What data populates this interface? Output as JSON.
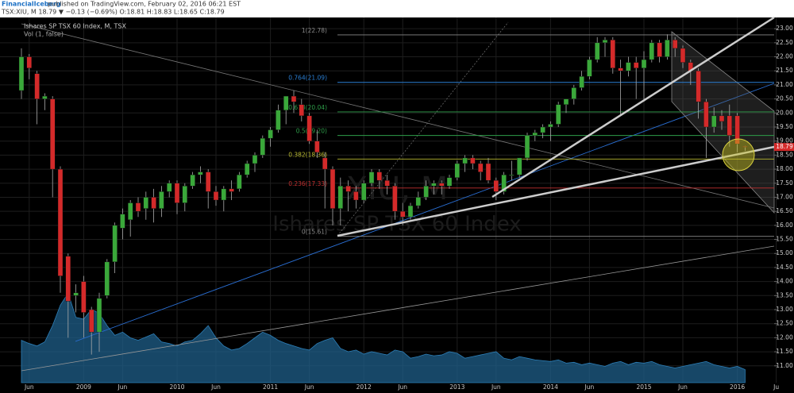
{
  "header": {
    "author": "FinancialIceberg",
    "published": "published on TradingView.com, February 02, 2016 06:21 EST",
    "symbol_line": "TSX:XIU, M 18.79 ▼ −0.13 (−0.69%) O:18.81 H:18.83 L:18.65 C:18.79"
  },
  "chart_data": {
    "type": "candlestick",
    "title": "Ishares SP TSX 60 Index, M, TSX",
    "volume_title": "Vol (1, false)",
    "watermark": [
      "XIU, M",
      "Ishares SP TSX 60 Index"
    ],
    "up_color": "#3aa83a",
    "down_color": "#d42a2a",
    "volume_color": "#1f5f8a",
    "grid": true,
    "categories": [
      null,
      "Jun",
      null,
      null,
      null,
      null,
      null,
      null,
      "2009",
      null,
      null,
      null,
      null,
      "Jun",
      null,
      null,
      null,
      null,
      null,
      null,
      "2010",
      null,
      null,
      null,
      null,
      "Jun",
      null,
      null,
      null,
      null,
      null,
      null,
      "2011",
      null,
      null,
      null,
      null,
      "Jun",
      null,
      null,
      null,
      null,
      null,
      null,
      "2012",
      null,
      null,
      null,
      null,
      "Jun",
      null,
      null,
      null,
      null,
      null,
      null,
      "2013",
      null,
      null,
      null,
      null,
      "Jun",
      null,
      null,
      null,
      null,
      null,
      null,
      "2014",
      null,
      null,
      null,
      null,
      "Jun",
      null,
      null,
      null,
      null,
      null,
      null,
      "2015",
      null,
      null,
      null,
      null,
      "Jun",
      null,
      null,
      null,
      null,
      null,
      null,
      "2016",
      null,
      null,
      null,
      null,
      "Ju"
    ],
    "open": [
      20.8,
      22.0,
      21.4,
      20.5,
      20.5,
      18.0,
      14.9,
      13.5,
      14.0,
      13.0,
      12.2,
      13.5,
      14.7,
      15.9,
      16.2,
      16.8,
      16.6,
      17.0,
      16.6,
      17.2,
      17.5,
      16.8,
      17.4,
      17.8,
      17.9,
      17.2,
      16.9,
      17.3,
      17.3,
      17.8,
      18.2,
      18.5,
      19.1,
      19.4,
      20.1,
      20.6,
      20.3,
      19.9,
      19.0,
      18.4,
      18.0,
      16.6,
      17.4,
      17.2,
      16.9,
      17.5,
      17.9,
      17.6,
      17.4,
      16.5,
      16.3,
      16.7,
      17.0,
      17.4,
      17.5,
      17.4,
      17.7,
      18.2,
      18.4,
      18.2,
      18.2,
      17.6,
      17.2,
      17.8,
      17.8,
      18.4,
      19.2,
      19.3,
      19.5,
      19.6,
      20.3,
      20.5,
      20.9,
      21.3,
      21.9,
      22.5,
      22.6,
      21.6,
      21.5,
      21.8,
      21.6,
      21.9,
      22.5,
      22.0,
      22.6,
      22.3,
      21.8,
      21.5,
      20.4,
      19.5,
      19.9,
      19.9,
      19.9,
      18.81,
      null,
      null,
      null,
      null
    ],
    "high": [
      22.3,
      22.1,
      21.5,
      20.7,
      20.6,
      18.1,
      15.0,
      13.9,
      14.2,
      13.1,
      13.6,
      14.8,
      16.1,
      16.6,
      16.9,
      17.0,
      17.2,
      17.3,
      17.4,
      17.6,
      17.6,
      17.5,
      17.9,
      18.1,
      18.0,
      17.4,
      17.4,
      17.6,
      17.9,
      18.3,
      18.6,
      19.2,
      19.5,
      20.3,
      20.6,
      20.8,
      20.5,
      20.0,
      19.4,
      18.6,
      18.1,
      17.7,
      17.6,
      17.4,
      17.6,
      18.0,
      18.0,
      17.8,
      17.5,
      16.8,
      16.8,
      17.2,
      17.6,
      17.6,
      17.6,
      17.8,
      18.3,
      18.5,
      18.5,
      18.3,
      18.4,
      17.7,
      17.9,
      18.3,
      18.4,
      19.3,
      19.4,
      19.6,
      19.7,
      20.4,
      20.5,
      21.0,
      21.5,
      22.0,
      22.7,
      22.7,
      22.7,
      21.9,
      22.0,
      22.0,
      22.2,
      22.6,
      22.6,
      22.8,
      22.7,
      22.4,
      21.9,
      21.6,
      20.5,
      20.2,
      20.1,
      20.3,
      20.0,
      18.83,
      null,
      null,
      null,
      null
    ],
    "low": [
      20.5,
      21.2,
      19.6,
      20.1,
      17.0,
      13.6,
      12.0,
      12.9,
      12.0,
      11.4,
      11.5,
      13.4,
      14.3,
      15.5,
      15.6,
      16.3,
      16.2,
      16.1,
      16.3,
      17.0,
      16.4,
      16.5,
      17.3,
      17.5,
      16.6,
      16.7,
      16.5,
      16.9,
      17.2,
      17.7,
      17.9,
      18.4,
      18.8,
      19.3,
      19.6,
      20.0,
      19.7,
      18.9,
      18.4,
      16.6,
      16.0,
      16.0,
      16.5,
      16.6,
      16.8,
      17.4,
      17.3,
      17.1,
      16.2,
      16.0,
      16.2,
      16.6,
      16.9,
      17.1,
      17.1,
      17.3,
      17.6,
      17.9,
      18.0,
      17.6,
      17.5,
      16.9,
      17.1,
      17.6,
      17.7,
      18.3,
      19.0,
      19.1,
      19.0,
      19.5,
      20.0,
      20.3,
      20.8,
      21.2,
      21.8,
      22.0,
      21.4,
      19.9,
      21.3,
      20.5,
      20.4,
      21.8,
      21.8,
      21.9,
      22.0,
      21.6,
      21.0,
      19.8,
      18.4,
      19.3,
      19.4,
      18.8,
      18.6,
      18.65,
      null,
      null,
      null,
      null
    ],
    "close": [
      22.0,
      21.6,
      20.5,
      20.6,
      18.0,
      14.2,
      13.3,
      13.6,
      12.9,
      12.2,
      13.4,
      14.7,
      16.0,
      16.4,
      16.8,
      16.5,
      17.0,
      16.6,
      17.2,
      17.5,
      16.8,
      17.4,
      17.8,
      17.9,
      17.2,
      16.9,
      17.3,
      17.2,
      17.8,
      18.2,
      18.5,
      19.1,
      19.4,
      20.1,
      20.6,
      20.4,
      19.9,
      19.0,
      18.6,
      18.0,
      16.6,
      17.4,
      17.2,
      16.9,
      17.5,
      17.9,
      17.6,
      17.4,
      16.5,
      16.3,
      16.7,
      17.0,
      17.4,
      17.5,
      17.4,
      17.7,
      18.2,
      18.4,
      18.2,
      17.9,
      17.6,
      17.2,
      17.8,
      17.8,
      18.4,
      19.2,
      19.3,
      19.5,
      19.6,
      20.3,
      20.5,
      20.9,
      21.3,
      21.9,
      22.5,
      22.6,
      21.6,
      21.5,
      21.8,
      21.6,
      21.9,
      22.5,
      22.0,
      22.6,
      22.3,
      21.8,
      21.5,
      20.4,
      19.5,
      19.9,
      19.7,
      19.2,
      18.9,
      18.79,
      null,
      null,
      null,
      null
    ],
    "volume": [
      52,
      48,
      45,
      50,
      70,
      95,
      110,
      80,
      78,
      90,
      85,
      70,
      58,
      62,
      55,
      52,
      56,
      60,
      50,
      48,
      45,
      50,
      52,
      60,
      70,
      55,
      45,
      40,
      42,
      48,
      55,
      62,
      58,
      52,
      48,
      45,
      42,
      40,
      48,
      52,
      55,
      42,
      38,
      40,
      35,
      38,
      36,
      34,
      40,
      38,
      30,
      32,
      35,
      33,
      34,
      38,
      36,
      30,
      32,
      34,
      36,
      38,
      30,
      28,
      32,
      30,
      28,
      27,
      26,
      28,
      24,
      25,
      22,
      24,
      22,
      20,
      24,
      26,
      22,
      25,
      24,
      26,
      22,
      20,
      18,
      20,
      22,
      24,
      26,
      22,
      20,
      18,
      20,
      16,
      null,
      null,
      null,
      null
    ],
    "fib_levels": [
      {
        "value": 22.78,
        "label": "1(22.78)",
        "color": "#888888"
      },
      {
        "value": 21.09,
        "label": "0.764(21.09)",
        "color": "#2a7fd4"
      },
      {
        "value": 20.04,
        "label": "0.618(20.04)",
        "color": "#2e9e4a"
      },
      {
        "value": 19.2,
        "label": "0.5(19.20)",
        "color": "#2e9e4a"
      },
      {
        "value": 18.36,
        "label": "0.382(18.36)",
        "color": "#b8b830"
      },
      {
        "value": 17.33,
        "label": "0.236(17.33)",
        "color": "#c03030"
      },
      {
        "value": 15.61,
        "label": "0(15.61)",
        "color": "#888888"
      }
    ],
    "ylim": [
      10.4,
      23.4
    ],
    "yticks": [
      {
        "value": 11,
        "label": "11.00"
      },
      {
        "value": 11.5,
        "label": "11.50"
      },
      {
        "value": 12,
        "label": "12.00"
      },
      {
        "value": 12.5,
        "label": "12.50"
      },
      {
        "value": 13,
        "label": "13.00"
      },
      {
        "value": 13.5,
        "label": "13.50"
      },
      {
        "value": 14,
        "label": "14.00"
      },
      {
        "value": 14.5,
        "label": "14.50"
      },
      {
        "value": 15,
        "label": "15.00"
      },
      {
        "value": 15.5,
        "label": "15.50"
      },
      {
        "value": 16,
        "label": "16.00"
      },
      {
        "value": 16.5,
        "label": "16.50"
      },
      {
        "value": 17,
        "label": "17.00"
      },
      {
        "value": 17.5,
        "label": "17.50"
      },
      {
        "value": 18,
        "label": "18.00"
      },
      {
        "value": 18.5,
        "label": "18.50"
      },
      {
        "value": 19,
        "label": "19.00"
      },
      {
        "value": 19.5,
        "label": "19.50"
      },
      {
        "value": 20,
        "label": "20.00"
      },
      {
        "value": 20.5,
        "label": "20.50"
      },
      {
        "value": 21,
        "label": "21.00"
      },
      {
        "value": 21.5,
        "label": "21.50"
      },
      {
        "value": 22,
        "label": "22.00"
      },
      {
        "value": 22.5,
        "label": "22.50"
      },
      {
        "value": 23,
        "label": "23.00"
      }
    ]
  }
}
